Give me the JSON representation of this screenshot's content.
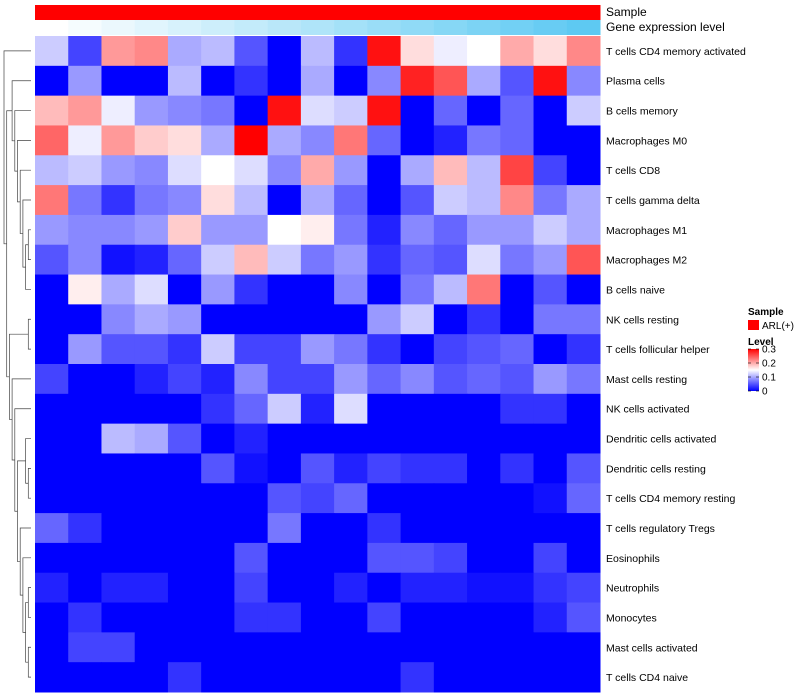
{
  "chart_data": {
    "type": "heatmap",
    "annotations": {
      "sample_label": "Sample",
      "gene_label": "Gene expression level",
      "sample_color": "#ff0000",
      "gene_colors": [
        "#ffffff",
        "#5ec9f2"
      ]
    },
    "legend": {
      "sample_title": "Sample",
      "sample_entry": "ARL(+)",
      "level_title": "Level",
      "ticks": [
        "0.3",
        "0.2",
        "0.1",
        "0"
      ],
      "tick_values": [
        0.3,
        0.2,
        0.1,
        0
      ]
    },
    "color_scale": {
      "low": "#0000ff",
      "mid": "#ffffff",
      "high": "#ff0000",
      "min": 0,
      "mid_value": 0.15,
      "max": 0.3
    },
    "rows": [
      "T cells CD4 memory activated",
      "Plasma cells",
      "B cells memory",
      "Macrophages M0",
      "T cells CD8",
      "T cells gamma delta",
      "Macrophages M1",
      "Macrophages M2",
      "B cells naive",
      "NK cells resting",
      "T cells follicular helper",
      "Mast cells resting",
      "NK cells activated",
      "Dendritic cells activated",
      "Dendritic cells resting",
      "T cells CD4 memory resting",
      "T cells regulatory  Tregs",
      "Eosinophils",
      "Neutrophils",
      "Monocytes",
      "Mast cells activated",
      "T cells CD4 naive"
    ],
    "values": [
      [
        0.12,
        0.04,
        0.21,
        0.22,
        0.1,
        0.11,
        0.05,
        0.0,
        0.11,
        0.03,
        0.29,
        0.17,
        0.14,
        0.15,
        0.2,
        0.17,
        0.22
      ],
      [
        0.0,
        0.09,
        0.0,
        0.0,
        0.11,
        0.0,
        0.03,
        0.0,
        0.1,
        0.0,
        0.08,
        0.28,
        0.25,
        0.1,
        0.05,
        0.29,
        0.08
      ],
      [
        0.19,
        0.21,
        0.14,
        0.09,
        0.08,
        0.07,
        0.0,
        0.29,
        0.13,
        0.12,
        0.29,
        0.0,
        0.06,
        0.0,
        0.06,
        0.0,
        0.12
      ],
      [
        0.24,
        0.14,
        0.21,
        0.18,
        0.17,
        0.1,
        0.3,
        0.1,
        0.08,
        0.23,
        0.06,
        0.0,
        0.02,
        0.07,
        0.06,
        0.0,
        0.0
      ],
      [
        0.11,
        0.12,
        0.09,
        0.08,
        0.13,
        0.15,
        0.13,
        0.08,
        0.2,
        0.09,
        0.0,
        0.1,
        0.19,
        0.11,
        0.26,
        0.04,
        0.0
      ],
      [
        0.23,
        0.07,
        0.03,
        0.07,
        0.08,
        0.17,
        0.11,
        0.0,
        0.1,
        0.06,
        0.0,
        0.05,
        0.12,
        0.11,
        0.22,
        0.07,
        0.1
      ],
      [
        0.09,
        0.08,
        0.08,
        0.09,
        0.18,
        0.09,
        0.09,
        0.15,
        0.16,
        0.07,
        0.02,
        0.08,
        0.06,
        0.09,
        0.09,
        0.12,
        0.1
      ],
      [
        0.05,
        0.08,
        0.01,
        0.02,
        0.06,
        0.12,
        0.19,
        0.12,
        0.07,
        0.09,
        0.03,
        0.06,
        0.05,
        0.13,
        0.07,
        0.09,
        0.25
      ],
      [
        0.0,
        0.16,
        0.1,
        0.13,
        0.0,
        0.09,
        0.03,
        0.0,
        0.0,
        0.08,
        0.0,
        0.07,
        0.11,
        0.23,
        0.0,
        0.05,
        0.0
      ],
      [
        0.0,
        0.0,
        0.08,
        0.1,
        0.09,
        0.0,
        0.0,
        0.0,
        0.0,
        0.0,
        0.09,
        0.12,
        0.0,
        0.03,
        0.0,
        0.07,
        0.07
      ],
      [
        0.0,
        0.09,
        0.05,
        0.05,
        0.03,
        0.12,
        0.04,
        0.04,
        0.09,
        0.07,
        0.03,
        0.0,
        0.04,
        0.05,
        0.06,
        0.0,
        0.03
      ],
      [
        0.04,
        0.0,
        0.0,
        0.02,
        0.04,
        0.02,
        0.08,
        0.04,
        0.04,
        0.09,
        0.06,
        0.08,
        0.05,
        0.06,
        0.05,
        0.09,
        0.07
      ],
      [
        0.0,
        0.0,
        0.0,
        0.0,
        0.0,
        0.03,
        0.06,
        0.12,
        0.02,
        0.13,
        0.0,
        0.0,
        0.0,
        0.0,
        0.03,
        0.03,
        0.0
      ],
      [
        0.0,
        0.0,
        0.11,
        0.1,
        0.05,
        0.0,
        0.02,
        0.0,
        0.0,
        0.0,
        0.0,
        0.0,
        0.0,
        0.0,
        0.0,
        0.0,
        0.0
      ],
      [
        0.0,
        0.0,
        0.0,
        0.0,
        0.0,
        0.05,
        0.01,
        0.0,
        0.05,
        0.02,
        0.04,
        0.03,
        0.03,
        0.0,
        0.03,
        0.0,
        0.05
      ],
      [
        0.0,
        0.0,
        0.0,
        0.0,
        0.0,
        0.0,
        0.0,
        0.05,
        0.04,
        0.06,
        0.0,
        0.0,
        0.0,
        0.0,
        0.0,
        0.01,
        0.06
      ],
      [
        0.06,
        0.03,
        0.0,
        0.0,
        0.0,
        0.0,
        0.0,
        0.07,
        0.0,
        0.0,
        0.03,
        0.0,
        0.0,
        0.0,
        0.0,
        0.0,
        0.0
      ],
      [
        0.0,
        0.0,
        0.0,
        0.0,
        0.0,
        0.0,
        0.05,
        0.0,
        0.0,
        0.0,
        0.05,
        0.05,
        0.04,
        0.0,
        0.0,
        0.04,
        0.0
      ],
      [
        0.02,
        0.0,
        0.02,
        0.02,
        0.0,
        0.0,
        0.04,
        0.0,
        0.0,
        0.02,
        0.0,
        0.02,
        0.02,
        0.01,
        0.01,
        0.03,
        0.04
      ],
      [
        0.0,
        0.03,
        0.0,
        0.0,
        0.0,
        0.0,
        0.03,
        0.03,
        0.0,
        0.0,
        0.04,
        0.0,
        0.0,
        0.0,
        0.0,
        0.02,
        0.05
      ],
      [
        0.0,
        0.04,
        0.04,
        0.0,
        0.0,
        0.0,
        0.0,
        0.0,
        0.0,
        0.0,
        0.0,
        0.0,
        0.0,
        0.0,
        0.0,
        0.0,
        0.0
      ],
      [
        0.0,
        0.0,
        0.0,
        0.0,
        0.03,
        0.0,
        0.0,
        0.0,
        0.0,
        0.0,
        0.0,
        0.03,
        0.0,
        0.0,
        0.0,
        0.0,
        0.0
      ]
    ]
  }
}
